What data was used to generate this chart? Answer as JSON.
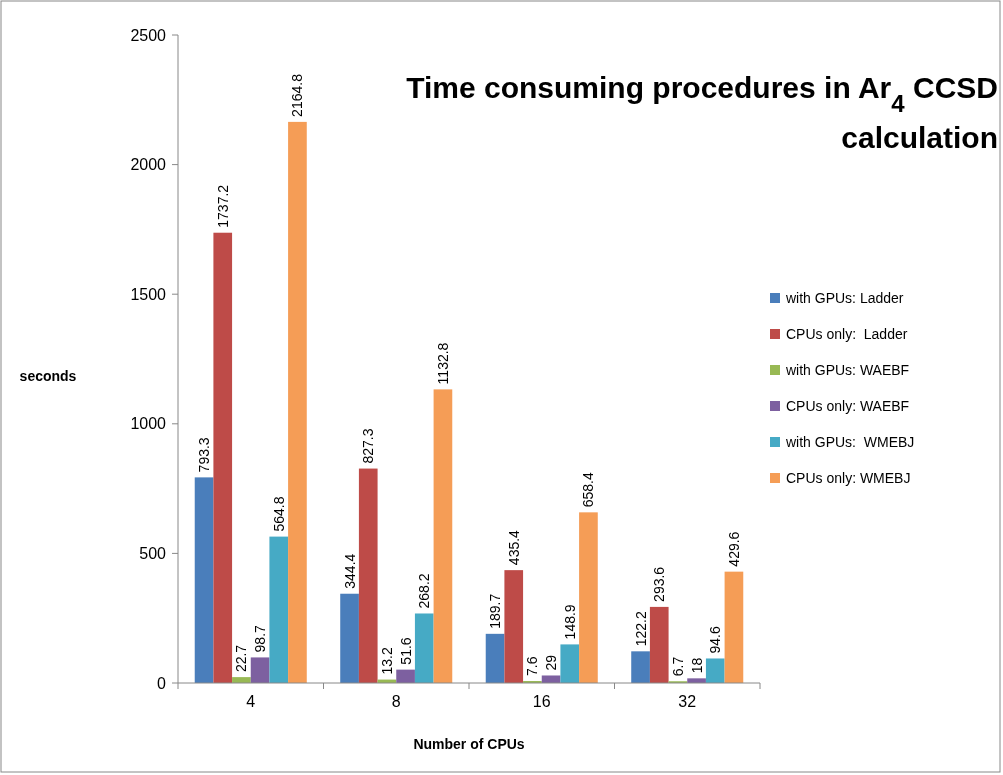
{
  "chart_data": {
    "type": "bar",
    "title": "Time consuming procedures in Ar$_{4}$ CCSD calculation",
    "xlabel": "Number of CPUs",
    "ylabel": "seconds",
    "categories": [
      "4",
      "8",
      "16",
      "32"
    ],
    "series": [
      {
        "name": "with GPUs: Ladder",
        "color": "#4a7ebb",
        "values": [
          793.3,
          344.4,
          189.7,
          122.2
        ]
      },
      {
        "name": "CPUs only:  Ladder",
        "color": "#be4b48",
        "values": [
          1737.2,
          827.3,
          435.4,
          293.6
        ]
      },
      {
        "name": "with GPUs: WAEBF",
        "color": "#98b954",
        "values": [
          22.7,
          13.2,
          7.6,
          6.7
        ]
      },
      {
        "name": "CPUs only: WAEBF",
        "color": "#7d60a0",
        "values": [
          98.7,
          51.6,
          29,
          18
        ]
      },
      {
        "name": "with GPUs:  WMEBJ",
        "color": "#46aac5",
        "values": [
          564.8,
          268.2,
          148.9,
          94.6
        ]
      },
      {
        "name": "CPUs only: WMEBJ",
        "color": "#f59d56",
        "values": [
          2164.8,
          1132.8,
          658.4,
          429.6
        ]
      }
    ],
    "ylim": [
      0,
      2500
    ],
    "yticks": [
      0,
      500,
      1000,
      1500,
      2000,
      2500
    ],
    "data_labels": true,
    "legend": "right"
  }
}
